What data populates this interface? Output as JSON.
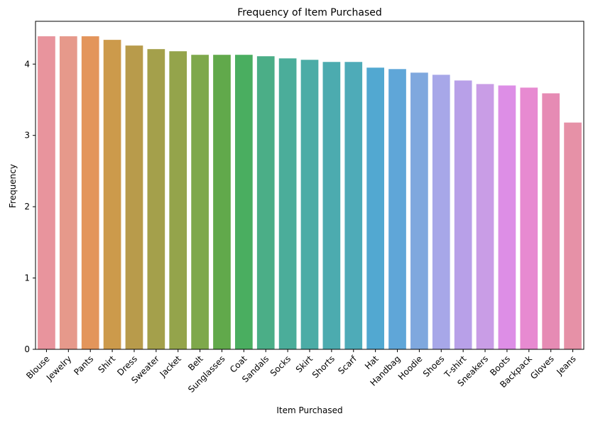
{
  "chart_data": {
    "type": "bar",
    "title": "Frequency of Item Purchased",
    "xlabel": "Item Purchased",
    "ylabel": "Frequency",
    "ylim": [
      0,
      4.6
    ],
    "yticks": [
      0,
      1,
      2,
      3,
      4
    ],
    "grid": false,
    "legend": "none",
    "categories": [
      "Blouse",
      "Jewelry",
      "Pants",
      "Shirt",
      "Dress",
      "Sweater",
      "Jacket",
      "Belt",
      "Sunglasses",
      "Coat",
      "Sandals",
      "Socks",
      "Skirt",
      "Shorts",
      "Scarf",
      "Hat",
      "Handbag",
      "Hoodie",
      "Shoes",
      "T-shirt",
      "Sneakers",
      "Boots",
      "Backpack",
      "Gloves",
      "Jeans"
    ],
    "values": [
      4.39,
      4.39,
      4.39,
      4.34,
      4.26,
      4.21,
      4.18,
      4.13,
      4.13,
      4.13,
      4.11,
      4.08,
      4.06,
      4.03,
      4.03,
      3.95,
      3.93,
      3.88,
      3.85,
      3.77,
      3.72,
      3.7,
      3.67,
      3.59,
      3.18
    ],
    "colors": [
      "#e8949d",
      "#e6998b",
      "#e3955b",
      "#cc9a4b",
      "#b89b4b",
      "#a4a04b",
      "#94a44b",
      "#7ea84b",
      "#61a94b",
      "#4aae60",
      "#4bae87",
      "#4bad9a",
      "#4caca6",
      "#4cabaf",
      "#4eabb8",
      "#52a8d1",
      "#5fa6d8",
      "#7fa8de",
      "#a7a7e8",
      "#b8a0e8",
      "#c99de6",
      "#dd8ee6",
      "#e78ad1",
      "#e68bb4",
      "#e691a7"
    ]
  }
}
